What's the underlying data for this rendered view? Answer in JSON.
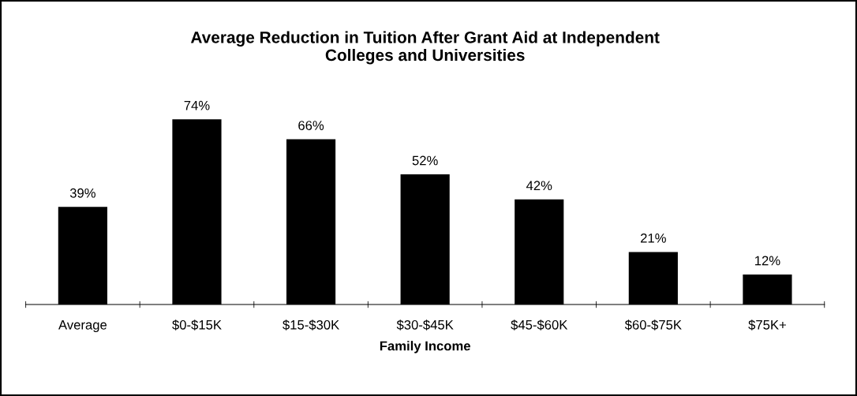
{
  "chart_data": {
    "type": "bar",
    "title": "Average Reduction in Tuition After Grant Aid at Independent\nColleges and Universities",
    "xlabel": "Family Income",
    "categories": [
      "Average",
      "$0-$15K",
      "$15-$30K",
      "$30-$45K",
      "$45-$60K",
      "$60-$75K",
      "$75K+"
    ],
    "values": [
      39,
      74,
      66,
      52,
      42,
      21,
      12
    ],
    "value_labels": [
      "39%",
      "74%",
      "66%",
      "52%",
      "42%",
      "21%",
      "12%"
    ],
    "color": "#000000",
    "tick_labels": "x",
    "grid": false,
    "legend": false
  }
}
